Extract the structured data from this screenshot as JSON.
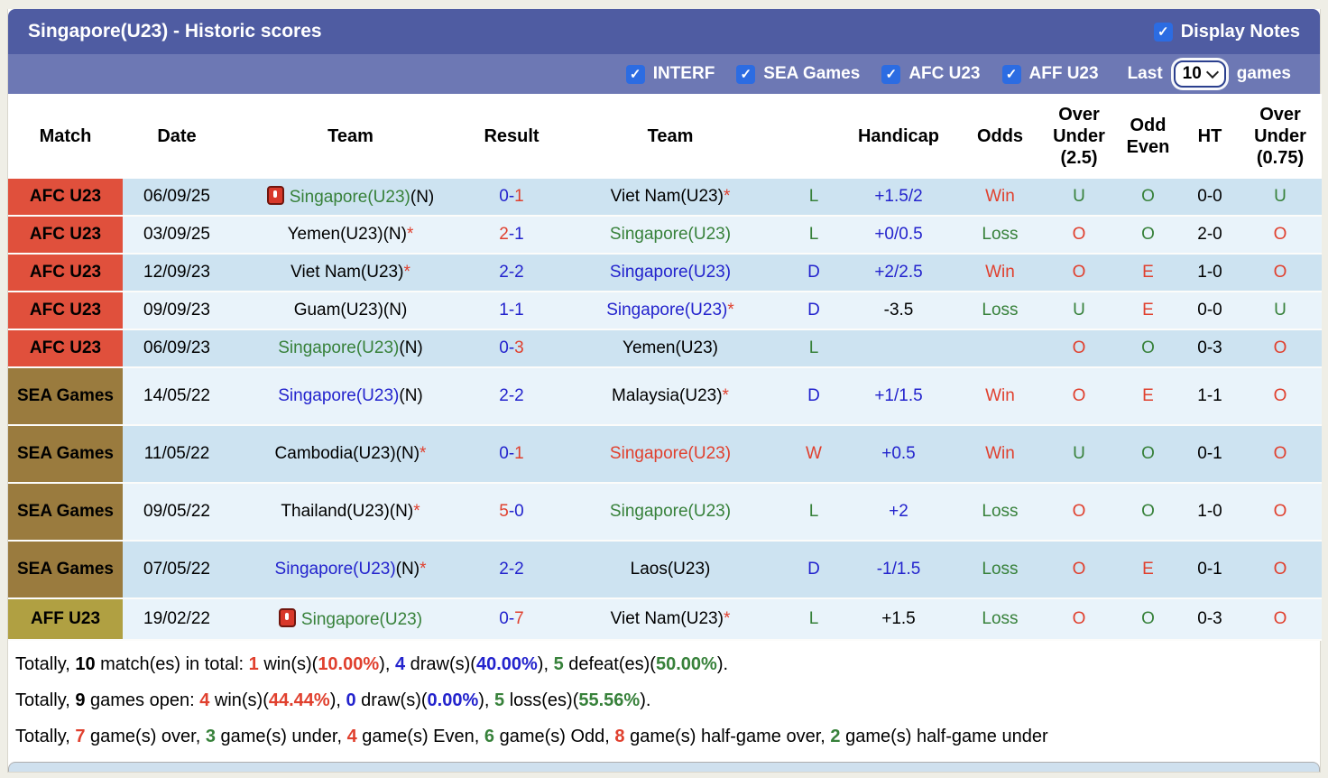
{
  "header": {
    "title": "Singapore(U23) - Historic scores",
    "display_notes_label": "Display Notes"
  },
  "filters": {
    "competitions": [
      {
        "label": "INTERF",
        "checked": true
      },
      {
        "label": "SEA Games",
        "checked": true
      },
      {
        "label": "AFC U23",
        "checked": true
      },
      {
        "label": "AFF U23",
        "checked": true
      }
    ],
    "last_label": "Last",
    "games_count": "10",
    "games_label": "games"
  },
  "colors": {
    "red": "#e0402e",
    "green": "#37813a",
    "blue": "#2323cd",
    "black": "#000000",
    "afc_badge": "#e0503c",
    "sea_badge": "#9a7b3e",
    "aff_badge": "#b0a042",
    "title_bar": "#4f5ca2",
    "filter_bar": "#6d78b4",
    "row_odd": "#cde3f1",
    "row_even": "#e9f3fa",
    "checkbox": "#2c6ce2"
  },
  "table": {
    "headers": [
      "Match",
      "Date",
      "Team",
      "Result",
      "Team",
      "",
      "Handicap",
      "Odds",
      "Over\nUnder\n(2.5)",
      "Odd\nEven",
      "HT",
      "Over\nUnder\n(0.75)"
    ],
    "rows": [
      {
        "competition": {
          "label": "AFC U23",
          "type": "afc"
        },
        "date": "06/09/25",
        "team1": {
          "icon": true,
          "segments": [
            {
              "t": "Singapore(U23)",
              "c": "green"
            },
            {
              "t": "(N)",
              "c": "black"
            }
          ]
        },
        "result": [
          {
            "t": "0-",
            "c": "blue"
          },
          {
            "t": "1",
            "c": "red"
          }
        ],
        "team2": {
          "segments": [
            {
              "t": "Viet Nam(U23)",
              "c": "black"
            },
            {
              "t": "*",
              "c": "red"
            }
          ]
        },
        "wdl": {
          "t": "L",
          "c": "green"
        },
        "handicap": {
          "t": "+1.5/2",
          "c": "blue"
        },
        "odds": {
          "t": "Win",
          "c": "red"
        },
        "ou25": {
          "t": "U",
          "c": "green"
        },
        "odd_even": {
          "t": "O",
          "c": "green"
        },
        "ht": "0-0",
        "ou075": {
          "t": "U",
          "c": "green"
        }
      },
      {
        "competition": {
          "label": "AFC U23",
          "type": "afc"
        },
        "date": "03/09/25",
        "team1": {
          "icon": false,
          "segments": [
            {
              "t": "Yemen(U23)(N)",
              "c": "black"
            },
            {
              "t": "*",
              "c": "red"
            }
          ]
        },
        "result": [
          {
            "t": "2",
            "c": "red"
          },
          {
            "t": "-1",
            "c": "blue"
          }
        ],
        "team2": {
          "segments": [
            {
              "t": "Singapore(U23)",
              "c": "green"
            }
          ]
        },
        "wdl": {
          "t": "L",
          "c": "green"
        },
        "handicap": {
          "t": "+0/0.5",
          "c": "blue"
        },
        "odds": {
          "t": "Loss",
          "c": "green"
        },
        "ou25": {
          "t": "O",
          "c": "red"
        },
        "odd_even": {
          "t": "O",
          "c": "green"
        },
        "ht": "2-0",
        "ou075": {
          "t": "O",
          "c": "red"
        }
      },
      {
        "competition": {
          "label": "AFC U23",
          "type": "afc"
        },
        "date": "12/09/23",
        "team1": {
          "icon": false,
          "segments": [
            {
              "t": "Viet Nam(U23)",
              "c": "black"
            },
            {
              "t": "*",
              "c": "red"
            }
          ]
        },
        "result": [
          {
            "t": "2-2",
            "c": "blue"
          }
        ],
        "team2": {
          "segments": [
            {
              "t": "Singapore(U23)",
              "c": "blue"
            }
          ]
        },
        "wdl": {
          "t": "D",
          "c": "blue"
        },
        "handicap": {
          "t": "+2/2.5",
          "c": "blue"
        },
        "odds": {
          "t": "Win",
          "c": "red"
        },
        "ou25": {
          "t": "O",
          "c": "red"
        },
        "odd_even": {
          "t": "E",
          "c": "red"
        },
        "ht": "1-0",
        "ou075": {
          "t": "O",
          "c": "red"
        }
      },
      {
        "competition": {
          "label": "AFC U23",
          "type": "afc"
        },
        "date": "09/09/23",
        "team1": {
          "icon": false,
          "segments": [
            {
              "t": "Guam(U23)(N)",
              "c": "black"
            }
          ]
        },
        "result": [
          {
            "t": "1-1",
            "c": "blue"
          }
        ],
        "team2": {
          "segments": [
            {
              "t": "Singapore(U23)",
              "c": "blue"
            },
            {
              "t": "*",
              "c": "red"
            }
          ]
        },
        "wdl": {
          "t": "D",
          "c": "blue"
        },
        "handicap": {
          "t": "-3.5",
          "c": "black"
        },
        "odds": {
          "t": "Loss",
          "c": "green"
        },
        "ou25": {
          "t": "U",
          "c": "green"
        },
        "odd_even": {
          "t": "E",
          "c": "red"
        },
        "ht": "0-0",
        "ou075": {
          "t": "U",
          "c": "green"
        }
      },
      {
        "competition": {
          "label": "AFC U23",
          "type": "afc"
        },
        "date": "06/09/23",
        "team1": {
          "icon": false,
          "segments": [
            {
              "t": "Singapore(U23)",
              "c": "green"
            },
            {
              "t": "(N)",
              "c": "black"
            }
          ]
        },
        "result": [
          {
            "t": "0-",
            "c": "blue"
          },
          {
            "t": "3",
            "c": "red"
          }
        ],
        "team2": {
          "segments": [
            {
              "t": "Yemen(U23)",
              "c": "black"
            }
          ]
        },
        "wdl": {
          "t": "L",
          "c": "green"
        },
        "handicap": null,
        "odds": null,
        "ou25": {
          "t": "O",
          "c": "red"
        },
        "odd_even": {
          "t": "O",
          "c": "green"
        },
        "ht": "0-3",
        "ou075": {
          "t": "O",
          "c": "red"
        }
      },
      {
        "competition": {
          "label": "SEA Games",
          "type": "sea"
        },
        "date": "14/05/22",
        "team1": {
          "icon": false,
          "segments": [
            {
              "t": "Singapore(U23)",
              "c": "blue"
            },
            {
              "t": "(N)",
              "c": "black"
            }
          ]
        },
        "result": [
          {
            "t": "2-2",
            "c": "blue"
          }
        ],
        "team2": {
          "segments": [
            {
              "t": "Malaysia(U23)",
              "c": "black"
            },
            {
              "t": "*",
              "c": "red"
            }
          ]
        },
        "wdl": {
          "t": "D",
          "c": "blue"
        },
        "handicap": {
          "t": "+1/1.5",
          "c": "blue"
        },
        "odds": {
          "t": "Win",
          "c": "red"
        },
        "ou25": {
          "t": "O",
          "c": "red"
        },
        "odd_even": {
          "t": "E",
          "c": "red"
        },
        "ht": "1-1",
        "ou075": {
          "t": "O",
          "c": "red"
        }
      },
      {
        "competition": {
          "label": "SEA Games",
          "type": "sea"
        },
        "date": "11/05/22",
        "team1": {
          "icon": false,
          "segments": [
            {
              "t": "Cambodia(U23)(N)",
              "c": "black"
            },
            {
              "t": "*",
              "c": "red"
            }
          ]
        },
        "result": [
          {
            "t": "0-",
            "c": "blue"
          },
          {
            "t": "1",
            "c": "red"
          }
        ],
        "team2": {
          "segments": [
            {
              "t": "Singapore(U23)",
              "c": "red"
            }
          ]
        },
        "wdl": {
          "t": "W",
          "c": "red"
        },
        "handicap": {
          "t": "+0.5",
          "c": "blue"
        },
        "odds": {
          "t": "Win",
          "c": "red"
        },
        "ou25": {
          "t": "U",
          "c": "green"
        },
        "odd_even": {
          "t": "O",
          "c": "green"
        },
        "ht": "0-1",
        "ou075": {
          "t": "O",
          "c": "red"
        }
      },
      {
        "competition": {
          "label": "SEA Games",
          "type": "sea"
        },
        "date": "09/05/22",
        "team1": {
          "icon": false,
          "segments": [
            {
              "t": "Thailand(U23)(N)",
              "c": "black"
            },
            {
              "t": "*",
              "c": "red"
            }
          ]
        },
        "result": [
          {
            "t": "5",
            "c": "red"
          },
          {
            "t": "-0",
            "c": "blue"
          }
        ],
        "team2": {
          "segments": [
            {
              "t": "Singapore(U23)",
              "c": "green"
            }
          ]
        },
        "wdl": {
          "t": "L",
          "c": "green"
        },
        "handicap": {
          "t": "+2",
          "c": "blue"
        },
        "odds": {
          "t": "Loss",
          "c": "green"
        },
        "ou25": {
          "t": "O",
          "c": "red"
        },
        "odd_even": {
          "t": "O",
          "c": "green"
        },
        "ht": "1-0",
        "ou075": {
          "t": "O",
          "c": "red"
        }
      },
      {
        "competition": {
          "label": "SEA Games",
          "type": "sea"
        },
        "date": "07/05/22",
        "team1": {
          "icon": false,
          "segments": [
            {
              "t": "Singapore(U23)",
              "c": "blue"
            },
            {
              "t": "(N)",
              "c": "black"
            },
            {
              "t": "*",
              "c": "red"
            }
          ]
        },
        "result": [
          {
            "t": "2-2",
            "c": "blue"
          }
        ],
        "team2": {
          "segments": [
            {
              "t": "Laos(U23)",
              "c": "black"
            }
          ]
        },
        "wdl": {
          "t": "D",
          "c": "blue"
        },
        "handicap": {
          "t": "-1/1.5",
          "c": "blue"
        },
        "odds": {
          "t": "Loss",
          "c": "green"
        },
        "ou25": {
          "t": "O",
          "c": "red"
        },
        "odd_even": {
          "t": "E",
          "c": "red"
        },
        "ht": "0-1",
        "ou075": {
          "t": "O",
          "c": "red"
        }
      },
      {
        "competition": {
          "label": "AFF U23",
          "type": "aff"
        },
        "date": "19/02/22",
        "team1": {
          "icon": true,
          "segments": [
            {
              "t": "Singapore(U23)",
              "c": "green"
            }
          ]
        },
        "result": [
          {
            "t": "0-",
            "c": "blue"
          },
          {
            "t": "7",
            "c": "red"
          }
        ],
        "team2": {
          "segments": [
            {
              "t": "Viet Nam(U23)",
              "c": "black"
            },
            {
              "t": "*",
              "c": "red"
            }
          ]
        },
        "wdl": {
          "t": "L",
          "c": "green"
        },
        "handicap": {
          "t": "+1.5",
          "c": "black"
        },
        "odds": {
          "t": "Loss",
          "c": "green"
        },
        "ou25": {
          "t": "O",
          "c": "red"
        },
        "odd_even": {
          "t": "O",
          "c": "green"
        },
        "ht": "0-3",
        "ou075": {
          "t": "O",
          "c": "red"
        }
      }
    ]
  },
  "summary": {
    "lines": [
      [
        {
          "t": "Totally, ",
          "c": "black"
        },
        {
          "t": "10",
          "c": "black",
          "b": 1
        },
        {
          "t": " match(es) in total: ",
          "c": "black"
        },
        {
          "t": "1",
          "c": "red",
          "b": 1
        },
        {
          "t": " win(s)(",
          "c": "black"
        },
        {
          "t": "10.00%",
          "c": "red",
          "b": 1
        },
        {
          "t": "), ",
          "c": "black"
        },
        {
          "t": "4",
          "c": "blue",
          "b": 1
        },
        {
          "t": " draw(s)(",
          "c": "black"
        },
        {
          "t": "40.00%",
          "c": "blue",
          "b": 1
        },
        {
          "t": "), ",
          "c": "black"
        },
        {
          "t": "5",
          "c": "green",
          "b": 1
        },
        {
          "t": " defeat(es)(",
          "c": "black"
        },
        {
          "t": "50.00%",
          "c": "green",
          "b": 1
        },
        {
          "t": ").",
          "c": "black"
        }
      ],
      [
        {
          "t": "Totally, ",
          "c": "black"
        },
        {
          "t": "9",
          "c": "black",
          "b": 1
        },
        {
          "t": " games open: ",
          "c": "black"
        },
        {
          "t": "4",
          "c": "red",
          "b": 1
        },
        {
          "t": " win(s)(",
          "c": "black"
        },
        {
          "t": "44.44%",
          "c": "red",
          "b": 1
        },
        {
          "t": "), ",
          "c": "black"
        },
        {
          "t": "0",
          "c": "blue",
          "b": 1
        },
        {
          "t": " draw(s)(",
          "c": "black"
        },
        {
          "t": "0.00%",
          "c": "blue",
          "b": 1
        },
        {
          "t": "), ",
          "c": "black"
        },
        {
          "t": "5",
          "c": "green",
          "b": 1
        },
        {
          "t": " loss(es)(",
          "c": "black"
        },
        {
          "t": "55.56%",
          "c": "green",
          "b": 1
        },
        {
          "t": ").",
          "c": "black"
        }
      ],
      [
        {
          "t": "Totally, ",
          "c": "black"
        },
        {
          "t": "7",
          "c": "red",
          "b": 1
        },
        {
          "t": " game(s) over, ",
          "c": "black"
        },
        {
          "t": "3",
          "c": "green",
          "b": 1
        },
        {
          "t": " game(s) under, ",
          "c": "black"
        },
        {
          "t": "4",
          "c": "red",
          "b": 1
        },
        {
          "t": " game(s) Even, ",
          "c": "black"
        },
        {
          "t": "6",
          "c": "green",
          "b": 1
        },
        {
          "t": " game(s) Odd, ",
          "c": "black"
        },
        {
          "t": "8",
          "c": "red",
          "b": 1
        },
        {
          "t": " game(s) half-game over, ",
          "c": "black"
        },
        {
          "t": "2",
          "c": "green",
          "b": 1
        },
        {
          "t": " game(s) half-game under",
          "c": "black"
        }
      ]
    ]
  }
}
